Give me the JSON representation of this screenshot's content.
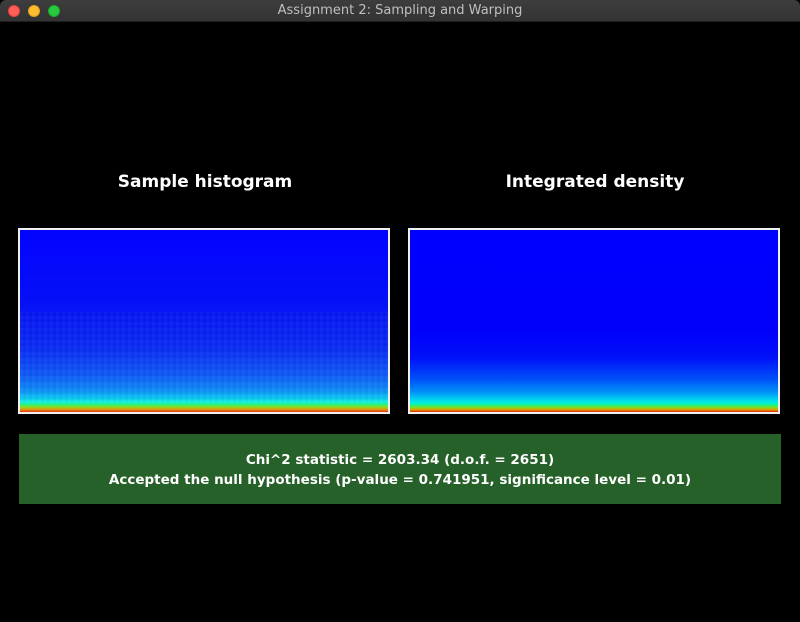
{
  "window": {
    "title": "Assignment 2: Sampling and Warping"
  },
  "panels": {
    "histogram_title": "Sample histogram",
    "density_title": "Integrated density"
  },
  "result": {
    "statistic_line": "Chi^2 statistic = 2603.34 (d.o.f. = 2651)",
    "conclusion_line": "Accepted the null hypothesis (p-value = 0.741951, significance level = 0.01)",
    "status_color": "#266129"
  }
}
